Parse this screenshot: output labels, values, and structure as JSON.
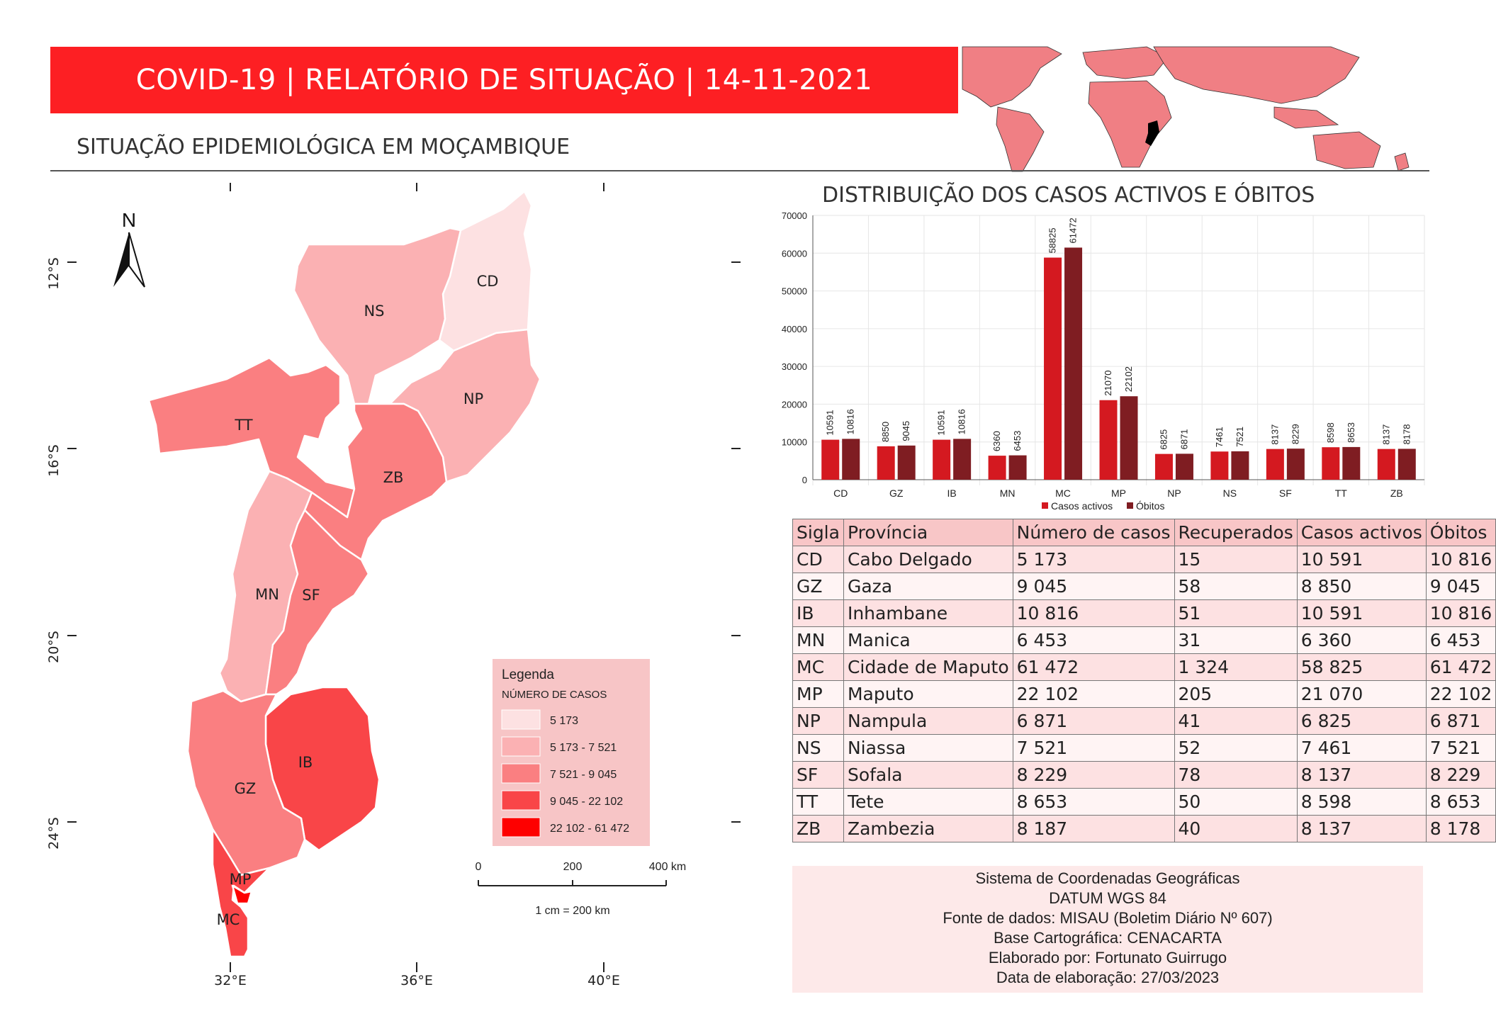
{
  "header": {
    "title": "COVID-19 | RELATÓRIO DE SITUAÇÃO | 14-11-2021",
    "subtitle": "SITUAÇÃO EPIDEMIOLÓGICA EM MOÇAMBIQUE"
  },
  "colors": {
    "title_bg": "#fd1f23",
    "class1": "#fde1e2",
    "class2": "#fbb1b3",
    "class3": "#fa7f81",
    "class4": "#f94548",
    "class5": "#fe0000",
    "bar_active": "#d41920",
    "bar_deaths": "#7f1d22"
  },
  "map": {
    "north_label": "N",
    "lat_labels": [
      "12°S",
      "16°S",
      "20°S",
      "24°S"
    ],
    "lon_labels": [
      "32°E",
      "36°E",
      "40°E"
    ],
    "province_labels": {
      "CD": "CD",
      "NS": "NS",
      "NP": "NP",
      "TT": "TT",
      "ZB": "ZB",
      "MN": "MN",
      "SF": "SF",
      "GZ": "GZ",
      "IB": "IB",
      "MP": "MP",
      "MC": "MC"
    },
    "legend": {
      "title": "Legenda",
      "subtitle": "NÚMERO DE CASOS",
      "classes": [
        "5 173",
        "5 173 - 7 521",
        "7 521 - 9 045",
        "9 045 - 22 102",
        "22 102 - 61 472"
      ]
    },
    "scale": {
      "ticks": [
        "0",
        "200",
        "400 km"
      ],
      "note": "1 cm = 200 km"
    }
  },
  "chart_data": {
    "type": "bar",
    "title": "DISTRIBUIÇÃO DOS CASOS ACTIVOS E ÓBITOS",
    "categories": [
      "CD",
      "GZ",
      "IB",
      "MN",
      "MC",
      "MP",
      "NP",
      "NS",
      "SF",
      "TT",
      "ZB"
    ],
    "series": [
      {
        "name": "Casos activos",
        "values": [
          10591,
          8850,
          10591,
          6360,
          58825,
          21070,
          6825,
          7461,
          8137,
          8598,
          8137
        ]
      },
      {
        "name": "Óbitos",
        "values": [
          10816,
          9045,
          10816,
          6453,
          61472,
          22102,
          6871,
          7521,
          8229,
          8653,
          8178
        ]
      }
    ],
    "ylim": [
      0,
      70000
    ],
    "yticks": [
      "0",
      "10000",
      "20000",
      "30000",
      "40000",
      "50000",
      "60000",
      "70000"
    ],
    "legend_position": "bottom",
    "grid": true
  },
  "table": {
    "headers": [
      "Sigla",
      "Província",
      "Número de casos",
      "Recuperados",
      "Casos activos",
      "Óbitos"
    ],
    "rows": [
      [
        "CD",
        "Cabo Delgado",
        "5 173",
        "15",
        "10 591",
        "10 816"
      ],
      [
        "GZ",
        "Gaza",
        "9 045",
        "58",
        "8 850",
        "9 045"
      ],
      [
        "IB",
        "Inhambane",
        "10 816",
        "51",
        "10 591",
        "10 816"
      ],
      [
        "MN",
        "Manica",
        "6 453",
        "31",
        "6 360",
        "6 453"
      ],
      [
        "MC",
        "Cidade de Maputo",
        "61 472",
        "1 324",
        "58 825",
        "61 472"
      ],
      [
        "MP",
        "Maputo",
        "22 102",
        "205",
        "21 070",
        "22 102"
      ],
      [
        "NP",
        "Nampula",
        "6 871",
        "41",
        "6 825",
        "6 871"
      ],
      [
        "NS",
        "Niassa",
        "7 521",
        "52",
        "7 461",
        "7 521"
      ],
      [
        "SF",
        "Sofala",
        "8 229",
        "78",
        "8 137",
        "8 229"
      ],
      [
        "TT",
        "Tete",
        "8 653",
        "50",
        "8 598",
        "8 653"
      ],
      [
        "ZB",
        "Zambezia",
        "8 187",
        "40",
        "8 137",
        "8 178"
      ]
    ]
  },
  "info": [
    "Sistema de Coordenadas Geográficas",
    "DATUM WGS 84",
    "Fonte de dados: MISAU (Boletim Diário Nº 607)",
    "Base Cartográfica: CENACARTA",
    "Elaborado por: Fortunato Guirrugo",
    "Data de elaboração: 27/03/2023"
  ]
}
